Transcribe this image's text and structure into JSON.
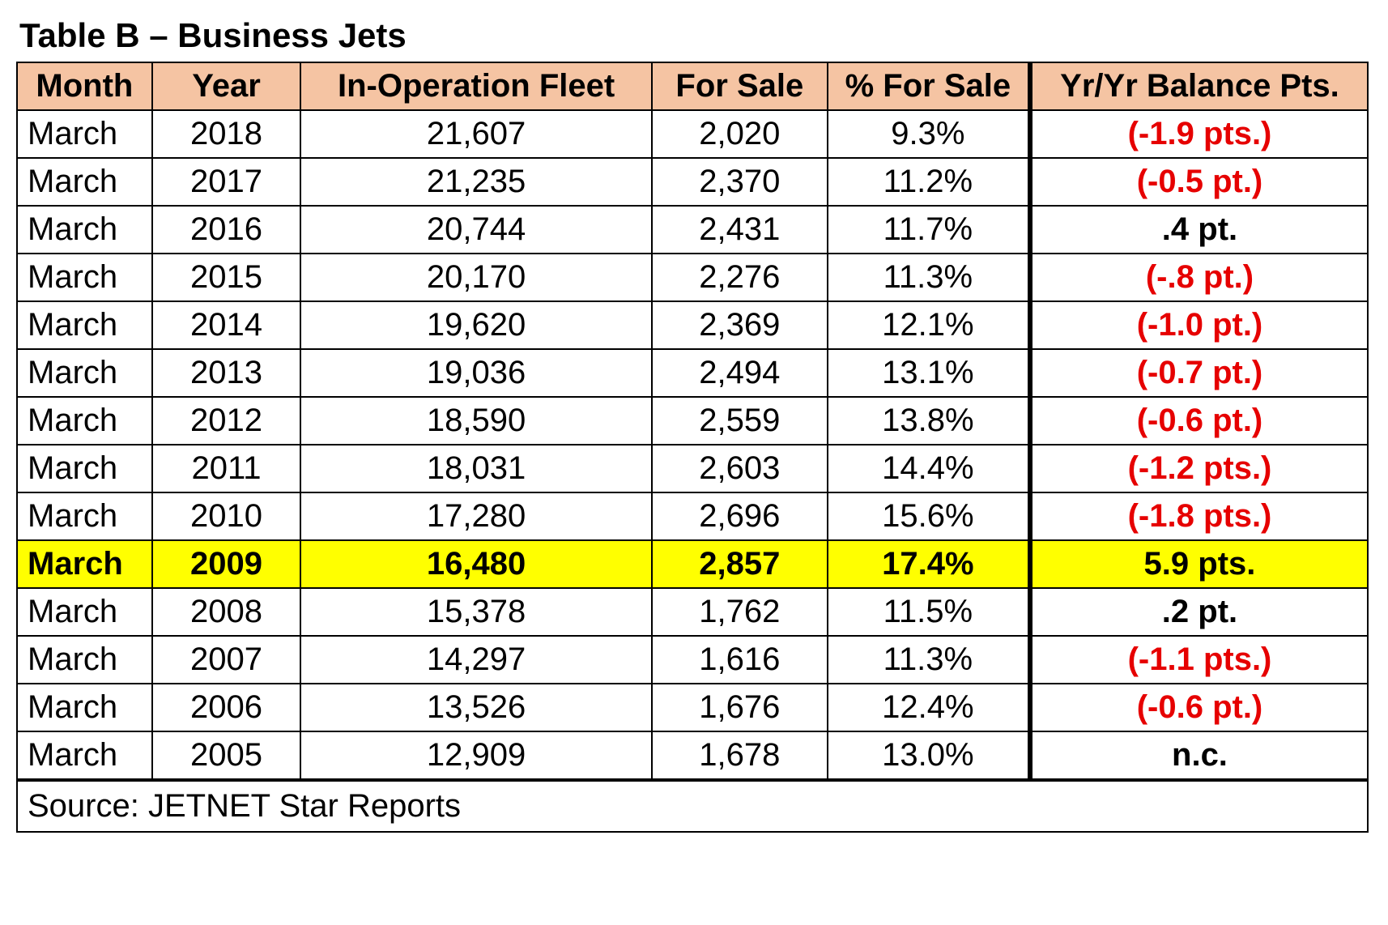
{
  "title": "Table B – Business Jets",
  "columns": [
    "Month",
    "Year",
    "In-Operation Fleet",
    "For Sale",
    "% For Sale",
    "Yr/Yr Balance Pts."
  ],
  "header_bg": "#f5c4a3",
  "highlight_bg": "#ffff00",
  "neg_color": "#e60000",
  "pos_color": "#000000",
  "border_color": "#000000",
  "font_family": "Arial",
  "title_fontsize_pt": 32,
  "cell_fontsize_pt": 30,
  "rows": [
    {
      "month": "March",
      "year": "2018",
      "fleet": "21,607",
      "for_sale": "2,020",
      "pct": "9.3%",
      "bal": "(-1.9 pts.)",
      "bal_neg": true,
      "highlight": false
    },
    {
      "month": "March",
      "year": "2017",
      "fleet": "21,235",
      "for_sale": "2,370",
      "pct": "11.2%",
      "bal": "(-0.5 pt.)",
      "bal_neg": true,
      "highlight": false
    },
    {
      "month": "March",
      "year": "2016",
      "fleet": "20,744",
      "for_sale": "2,431",
      "pct": "11.7%",
      "bal": ".4 pt.",
      "bal_neg": false,
      "highlight": false
    },
    {
      "month": "March",
      "year": "2015",
      "fleet": "20,170",
      "for_sale": "2,276",
      "pct": "11.3%",
      "bal": "(-.8 pt.)",
      "bal_neg": true,
      "highlight": false
    },
    {
      "month": "March",
      "year": "2014",
      "fleet": "19,620",
      "for_sale": "2,369",
      "pct": "12.1%",
      "bal": "(-1.0 pt.)",
      "bal_neg": true,
      "highlight": false
    },
    {
      "month": "March",
      "year": "2013",
      "fleet": "19,036",
      "for_sale": "2,494",
      "pct": "13.1%",
      "bal": "(-0.7 pt.)",
      "bal_neg": true,
      "highlight": false
    },
    {
      "month": "March",
      "year": "2012",
      "fleet": "18,590",
      "for_sale": "2,559",
      "pct": "13.8%",
      "bal": "(-0.6 pt.)",
      "bal_neg": true,
      "highlight": false
    },
    {
      "month": "March",
      "year": "2011",
      "fleet": "18,031",
      "for_sale": "2,603",
      "pct": "14.4%",
      "bal": "(-1.2 pts.)",
      "bal_neg": true,
      "highlight": false
    },
    {
      "month": "March",
      "year": "2010",
      "fleet": "17,280",
      "for_sale": "2,696",
      "pct": "15.6%",
      "bal": "(-1.8 pts.)",
      "bal_neg": true,
      "highlight": false
    },
    {
      "month": "March",
      "year": "2009",
      "fleet": "16,480",
      "for_sale": "2,857",
      "pct": "17.4%",
      "bal": "5.9 pts.",
      "bal_neg": false,
      "highlight": true
    },
    {
      "month": "March",
      "year": "2008",
      "fleet": "15,378",
      "for_sale": "1,762",
      "pct": "11.5%",
      "bal": ".2 pt.",
      "bal_neg": false,
      "highlight": false
    },
    {
      "month": "March",
      "year": "2007",
      "fleet": "14,297",
      "for_sale": "1,616",
      "pct": "11.3%",
      "bal": "(-1.1 pts.)",
      "bal_neg": true,
      "highlight": false
    },
    {
      "month": "March",
      "year": "2006",
      "fleet": "13,526",
      "for_sale": "1,676",
      "pct": "12.4%",
      "bal": "(-0.6 pt.)",
      "bal_neg": true,
      "highlight": false
    },
    {
      "month": "March",
      "year": "2005",
      "fleet": "12,909",
      "for_sale": "1,678",
      "pct": "13.0%",
      "bal": "n.c.",
      "bal_neg": false,
      "highlight": false
    }
  ],
  "source": "Source: JETNET Star Reports"
}
